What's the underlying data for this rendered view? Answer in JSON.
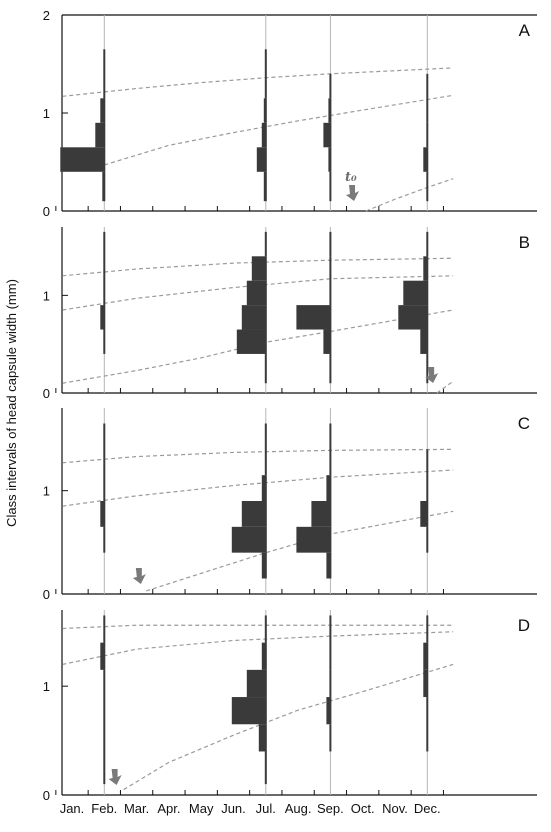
{
  "y_label": "Class intervals of head capsule width (mm)",
  "x_months": [
    "Jan.",
    "Feb.",
    "Mar.",
    "Apr.",
    "May",
    "Jun.",
    "Jul.",
    "Aug.",
    "Sep.",
    "Oct.",
    "Nov.",
    "Dec."
  ],
  "t0_label": "t₀",
  "colors": {
    "bars": "#3a3a3a",
    "curves": "#9a9a9a",
    "sample_lines": "#b5b5b5",
    "arrow": "#7a7a7a",
    "axis": "#111111"
  },
  "chart_data": [
    {
      "type": "bar",
      "panel": "A",
      "ylim": [
        0,
        2
      ],
      "y_ticks": [
        0,
        1,
        2
      ],
      "grid": false,
      "samples": [
        {
          "month": "Feb.",
          "x": 1.0,
          "bins": [
            [
              0.1,
              0.4,
              0.03
            ],
            [
              0.4,
              0.65,
              0.45
            ],
            [
              0.65,
              0.9,
              0.1
            ],
            [
              0.9,
              1.15,
              0.05
            ],
            [
              1.15,
              1.65,
              0.02
            ]
          ]
        },
        {
          "month": "Jul.",
          "x": 6.0,
          "bins": [
            [
              0.1,
              0.4,
              0.03
            ],
            [
              0.4,
              0.65,
              0.1
            ],
            [
              0.65,
              0.9,
              0.05
            ],
            [
              0.9,
              1.15,
              0.03
            ],
            [
              1.15,
              1.65,
              0.02
            ]
          ]
        },
        {
          "month": "Sep.",
          "x": 8.0,
          "bins": [
            [
              0.1,
              0.4,
              0.02
            ],
            [
              0.4,
              0.65,
              0.03
            ],
            [
              0.65,
              0.9,
              0.08
            ],
            [
              0.9,
              1.15,
              0.03
            ],
            [
              1.15,
              1.4,
              0.02
            ]
          ]
        },
        {
          "month": "Dec.",
          "x": 11.0,
          "bins": [
            [
              0.1,
              0.4,
              0.02
            ],
            [
              0.4,
              0.65,
              0.05
            ],
            [
              0.65,
              0.9,
              0.02
            ],
            [
              0.9,
              1.4,
              0.02
            ]
          ]
        }
      ],
      "growth_curves": [
        {
          "x": [
            -0.3,
            2,
            4,
            6,
            8,
            11.8
          ],
          "y": [
            1.17,
            1.25,
            1.31,
            1.36,
            1.4,
            1.46
          ]
        },
        {
          "x": [
            1.0,
            3,
            5,
            7,
            9,
            11.8
          ],
          "y": [
            0.47,
            0.67,
            0.8,
            0.92,
            1.03,
            1.18
          ]
        },
        {
          "x": [
            9.1,
            10,
            11,
            11.8
          ],
          "y": [
            0.0,
            0.12,
            0.24,
            0.33
          ]
        }
      ],
      "recruitment": {
        "x": 8.7,
        "label": true
      }
    },
    {
      "type": "bar",
      "panel": "B",
      "ylim": [
        0,
        1.7
      ],
      "y_ticks": [
        0,
        1
      ],
      "grid": false,
      "samples": [
        {
          "month": "Feb.",
          "x": 1.0,
          "bins": [
            [
              0.4,
              0.65,
              0.02
            ],
            [
              0.65,
              0.9,
              0.05
            ],
            [
              0.9,
              1.65,
              0.02
            ]
          ]
        },
        {
          "month": "Jul.",
          "x": 6.0,
          "bins": [
            [
              0.1,
              0.4,
              0.02
            ],
            [
              0.4,
              0.65,
              0.3
            ],
            [
              0.65,
              0.9,
              0.25
            ],
            [
              0.9,
              1.15,
              0.2
            ],
            [
              1.15,
              1.4,
              0.15
            ],
            [
              1.4,
              1.65,
              0.02
            ]
          ]
        },
        {
          "month": "Sep.",
          "x": 8.0,
          "bins": [
            [
              0.1,
              0.4,
              0.02
            ],
            [
              0.4,
              0.65,
              0.08
            ],
            [
              0.65,
              0.9,
              0.35
            ],
            [
              0.9,
              1.4,
              0.02
            ],
            [
              1.4,
              1.65,
              0.02
            ]
          ]
        },
        {
          "month": "Dec.",
          "x": 11.0,
          "bins": [
            [
              0.1,
              0.4,
              0.02
            ],
            [
              0.4,
              0.65,
              0.08
            ],
            [
              0.65,
              0.9,
              0.3
            ],
            [
              0.9,
              1.15,
              0.25
            ],
            [
              1.15,
              1.4,
              0.05
            ],
            [
              1.4,
              1.65,
              0.02
            ]
          ]
        }
      ],
      "growth_curves": [
        {
          "x": [
            -0.3,
            2,
            5,
            8,
            11.8
          ],
          "y": [
            1.2,
            1.27,
            1.33,
            1.36,
            1.38
          ]
        },
        {
          "x": [
            -0.3,
            2,
            5,
            8,
            11.8
          ],
          "y": [
            0.85,
            0.97,
            1.08,
            1.17,
            1.2
          ]
        },
        {
          "x": [
            -0.3,
            2,
            4,
            6,
            8,
            11.8
          ],
          "y": [
            0.1,
            0.23,
            0.36,
            0.52,
            0.63,
            0.85
          ]
        },
        {
          "x": [
            11.3,
            11.8
          ],
          "y": [
            0.0,
            0.12
          ]
        }
      ],
      "recruitment": {
        "x": 11.15,
        "label": false
      }
    },
    {
      "type": "bar",
      "panel": "C",
      "ylim": [
        0,
        1.8
      ],
      "y_ticks": [
        0,
        1
      ],
      "grid": false,
      "samples": [
        {
          "month": "Feb.",
          "x": 1.0,
          "bins": [
            [
              0.4,
              0.65,
              0.02
            ],
            [
              0.65,
              0.9,
              0.05
            ],
            [
              0.9,
              1.65,
              0.02
            ]
          ]
        },
        {
          "month": "Jul.",
          "x": 6.0,
          "bins": [
            [
              0.15,
              0.4,
              0.05
            ],
            [
              0.4,
              0.65,
              0.35
            ],
            [
              0.65,
              0.9,
              0.25
            ],
            [
              0.9,
              1.15,
              0.05
            ],
            [
              1.15,
              1.65,
              0.02
            ]
          ]
        },
        {
          "month": "Sep.",
          "x": 8.0,
          "bins": [
            [
              0.15,
              0.4,
              0.05
            ],
            [
              0.4,
              0.65,
              0.35
            ],
            [
              0.65,
              0.9,
              0.2
            ],
            [
              0.9,
              1.15,
              0.05
            ],
            [
              1.15,
              1.65,
              0.02
            ]
          ]
        },
        {
          "month": "Dec.",
          "x": 11.0,
          "bins": [
            [
              0.4,
              0.65,
              0.02
            ],
            [
              0.65,
              0.9,
              0.08
            ],
            [
              0.9,
              1.4,
              0.02
            ]
          ]
        }
      ],
      "growth_curves": [
        {
          "x": [
            -0.3,
            2,
            5,
            8,
            11.8
          ],
          "y": [
            1.27,
            1.33,
            1.37,
            1.39,
            1.4
          ]
        },
        {
          "x": [
            -0.3,
            2,
            5,
            8,
            11.8
          ],
          "y": [
            0.85,
            0.95,
            1.05,
            1.13,
            1.2
          ]
        },
        {
          "x": [
            2.3,
            4,
            6,
            8,
            11.8
          ],
          "y": [
            0.03,
            0.2,
            0.4,
            0.58,
            0.8
          ]
        }
      ],
      "recruitment": {
        "x": 2.1,
        "label": false
      }
    },
    {
      "type": "bar",
      "panel": "D",
      "ylim": [
        0,
        1.7
      ],
      "y_ticks": [
        0,
        1
      ],
      "grid": false,
      "samples": [
        {
          "month": "Feb.",
          "x": 1.0,
          "bins": [
            [
              0.1,
              1.15,
              0.02
            ],
            [
              1.15,
              1.4,
              0.05
            ],
            [
              1.4,
              1.65,
              0.02
            ]
          ]
        },
        {
          "month": "Jul.",
          "x": 6.0,
          "bins": [
            [
              0.1,
              0.4,
              0.02
            ],
            [
              0.4,
              0.65,
              0.08
            ],
            [
              0.65,
              0.9,
              0.35
            ],
            [
              0.9,
              1.15,
              0.2
            ],
            [
              1.15,
              1.4,
              0.05
            ],
            [
              1.4,
              1.65,
              0.02
            ]
          ]
        },
        {
          "month": "Sep.",
          "x": 8.0,
          "bins": [
            [
              0.4,
              0.65,
              0.02
            ],
            [
              0.65,
              0.9,
              0.05
            ],
            [
              0.9,
              1.15,
              0.02
            ],
            [
              1.15,
              1.65,
              0.02
            ]
          ]
        },
        {
          "month": "Dec.",
          "x": 11.0,
          "bins": [
            [
              0.4,
              0.9,
              0.02
            ],
            [
              0.9,
              1.15,
              0.05
            ],
            [
              1.15,
              1.4,
              0.05
            ],
            [
              1.4,
              1.65,
              0.02
            ]
          ]
        }
      ],
      "growth_curves": [
        {
          "x": [
            -0.3,
            2,
            5,
            8,
            11.8
          ],
          "y": [
            1.53,
            1.56,
            1.56,
            1.56,
            1.56
          ]
        },
        {
          "x": [
            -0.3,
            2,
            5,
            8,
            11.8
          ],
          "y": [
            1.2,
            1.34,
            1.42,
            1.46,
            1.5
          ]
        },
        {
          "x": [
            1.6,
            3,
            5,
            7,
            9,
            11.8
          ],
          "y": [
            0.05,
            0.3,
            0.55,
            0.78,
            0.95,
            1.2
          ]
        }
      ],
      "recruitment": {
        "x": 1.35,
        "label": false
      }
    }
  ]
}
